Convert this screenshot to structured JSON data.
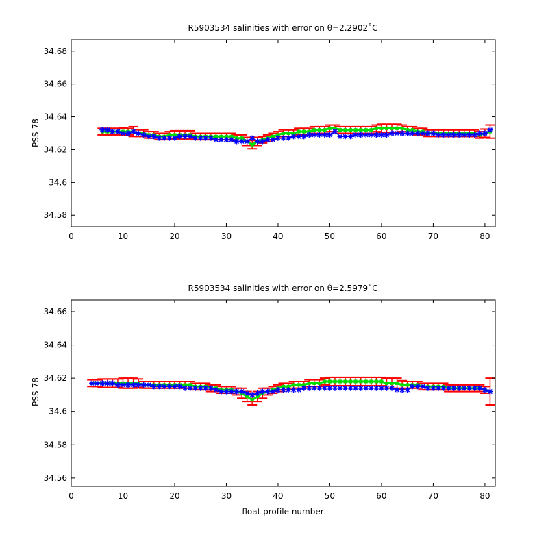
{
  "colors": {
    "errorbar": "#ff0000",
    "mapped": "#00dd00",
    "float": "#0000ff",
    "axes": "#000000"
  },
  "chart_data": [
    {
      "type": "line",
      "title": "R5903534 salinities with error on θ=2.2902˚C",
      "xlabel": "",
      "ylabel": "PSS-78",
      "xlim": [
        0,
        82
      ],
      "ylim": [
        34.573,
        34.687
      ],
      "xticks": [
        0,
        10,
        20,
        30,
        40,
        50,
        60,
        70,
        80
      ],
      "xtick_labels": [
        "0",
        "10",
        "20",
        "30",
        "40",
        "50",
        "60",
        "70",
        "80"
      ],
      "yticks": [
        34.58,
        34.6,
        34.62,
        34.64,
        34.66,
        34.68
      ],
      "ytick_labels": [
        "34.58",
        "34.6",
        "34.62",
        "34.64",
        "34.66",
        "34.68"
      ],
      "x": [
        6,
        7,
        8,
        9,
        10,
        11,
        12,
        13,
        14,
        15,
        16,
        17,
        18,
        19,
        20,
        21,
        22,
        23,
        24,
        25,
        26,
        27,
        28,
        29,
        30,
        31,
        32,
        33,
        34,
        35,
        36,
        37,
        38,
        39,
        40,
        41,
        42,
        43,
        44,
        45,
        46,
        47,
        48,
        49,
        50,
        51,
        52,
        53,
        54,
        55,
        56,
        57,
        58,
        59,
        60,
        61,
        62,
        63,
        64,
        65,
        66,
        67,
        68,
        69,
        70,
        71,
        72,
        73,
        74,
        75,
        76,
        77,
        78,
        79,
        80,
        81
      ],
      "series": [
        {
          "role": "float",
          "values": [
            34.632,
            34.632,
            34.631,
            34.631,
            34.63,
            34.63,
            34.631,
            34.63,
            34.629,
            34.628,
            34.628,
            34.627,
            34.627,
            34.627,
            34.627,
            34.628,
            34.628,
            34.628,
            34.627,
            34.627,
            34.627,
            34.627,
            34.626,
            34.626,
            34.626,
            34.626,
            34.625,
            34.625,
            34.625,
            34.627,
            34.625,
            34.625,
            34.626,
            34.626,
            34.627,
            34.627,
            34.627,
            34.628,
            34.628,
            34.628,
            34.629,
            34.629,
            34.629,
            34.629,
            34.629,
            34.631,
            34.628,
            34.628,
            34.628,
            34.629,
            34.629,
            34.629,
            34.629,
            34.629,
            34.629,
            34.629,
            34.63,
            34.63,
            34.63,
            34.63,
            34.63,
            34.63,
            34.63,
            34.63,
            34.63,
            34.629,
            34.629,
            34.629,
            34.629,
            34.629,
            34.629,
            34.629,
            34.629,
            34.63,
            34.63,
            34.632
          ]
        },
        {
          "role": "mapped",
          "values": [
            34.631,
            34.631,
            34.631,
            34.631,
            34.631,
            34.631,
            34.631,
            34.63,
            34.63,
            34.629,
            34.629,
            34.628,
            34.628,
            34.629,
            34.629,
            34.629,
            34.629,
            34.629,
            34.628,
            34.628,
            34.628,
            34.628,
            34.628,
            34.628,
            34.628,
            34.628,
            34.627,
            34.627,
            34.625,
            34.623,
            34.625,
            34.626,
            34.627,
            34.628,
            34.629,
            34.63,
            34.63,
            34.63,
            34.631,
            34.631,
            34.631,
            34.632,
            34.632,
            34.632,
            34.633,
            34.633,
            34.632,
            34.632,
            34.632,
            34.632,
            34.632,
            34.632,
            34.632,
            34.633,
            34.633,
            34.633,
            34.633,
            34.633,
            34.633,
            34.632,
            34.632,
            34.631,
            34.631,
            34.63,
            34.63,
            34.63,
            34.63,
            34.63,
            34.63,
            34.63,
            34.63,
            34.63,
            34.63,
            34.629,
            34.63,
            34.631
          ]
        },
        {
          "role": "error",
          "values": [
            0.002,
            0.002,
            0.002,
            0.002,
            0.0022,
            0.002,
            0.003,
            0.002,
            0.002,
            0.002,
            0.002,
            0.002,
            0.002,
            0.002,
            0.0025,
            0.0025,
            0.0025,
            0.0025,
            0.002,
            0.002,
            0.002,
            0.002,
            0.002,
            0.002,
            0.002,
            0.002,
            0.002,
            0.002,
            0.0025,
            0.0025,
            0.0025,
            0.002,
            0.002,
            0.002,
            0.002,
            0.002,
            0.002,
            0.002,
            0.002,
            0.002,
            0.002,
            0.002,
            0.002,
            0.002,
            0.002,
            0.002,
            0.002,
            0.002,
            0.002,
            0.002,
            0.002,
            0.002,
            0.002,
            0.002,
            0.0025,
            0.0025,
            0.0025,
            0.0025,
            0.002,
            0.002,
            0.002,
            0.002,
            0.002,
            0.002,
            0.002,
            0.002,
            0.002,
            0.002,
            0.002,
            0.002,
            0.002,
            0.002,
            0.002,
            0.002,
            0.0025,
            0.004
          ]
        }
      ]
    },
    {
      "type": "line",
      "title": "R5903534 salinities with error on θ=2.5979˚C",
      "xlabel": "float profile number",
      "ylabel": "PSS-78",
      "xlim": [
        0,
        82
      ],
      "ylim": [
        34.555,
        34.667
      ],
      "xticks": [
        0,
        10,
        20,
        30,
        40,
        50,
        60,
        70,
        80
      ],
      "xtick_labels": [
        "0",
        "10",
        "20",
        "30",
        "40",
        "50",
        "60",
        "70",
        "80"
      ],
      "yticks": [
        34.56,
        34.58,
        34.6,
        34.62,
        34.64,
        34.66
      ],
      "ytick_labels": [
        "34.56",
        "34.58",
        "34.6",
        "34.62",
        "34.64",
        "34.66"
      ],
      "x": [
        4,
        5,
        6,
        7,
        8,
        9,
        10,
        11,
        12,
        13,
        14,
        15,
        16,
        17,
        18,
        19,
        20,
        21,
        22,
        23,
        24,
        25,
        26,
        27,
        28,
        29,
        30,
        31,
        32,
        33,
        34,
        35,
        36,
        37,
        38,
        39,
        40,
        41,
        42,
        43,
        44,
        45,
        46,
        47,
        48,
        49,
        50,
        51,
        52,
        53,
        54,
        55,
        56,
        57,
        58,
        59,
        60,
        61,
        62,
        63,
        64,
        65,
        66,
        67,
        68,
        69,
        70,
        71,
        72,
        73,
        74,
        75,
        76,
        77,
        78,
        79,
        80,
        81
      ],
      "series": [
        {
          "role": "float",
          "values": [
            34.617,
            34.617,
            34.617,
            34.617,
            34.617,
            34.616,
            34.616,
            34.616,
            34.616,
            34.616,
            34.616,
            34.616,
            34.615,
            34.615,
            34.615,
            34.615,
            34.615,
            34.615,
            34.614,
            34.614,
            34.614,
            34.614,
            34.614,
            34.614,
            34.613,
            34.612,
            34.612,
            34.612,
            34.612,
            34.612,
            34.611,
            34.61,
            34.611,
            34.612,
            34.612,
            34.612,
            34.613,
            34.613,
            34.613,
            34.613,
            34.613,
            34.614,
            34.614,
            34.614,
            34.614,
            34.614,
            34.614,
            34.614,
            34.614,
            34.614,
            34.614,
            34.614,
            34.614,
            34.614,
            34.614,
            34.614,
            34.614,
            34.614,
            34.614,
            34.613,
            34.613,
            34.613,
            34.615,
            34.615,
            34.615,
            34.614,
            34.614,
            34.614,
            34.614,
            34.614,
            34.614,
            34.614,
            34.614,
            34.614,
            34.614,
            34.614,
            34.613,
            34.612
          ]
        },
        {
          "role": "mapped",
          "values": [
            34.617,
            34.617,
            34.617,
            34.617,
            34.617,
            34.617,
            34.617,
            34.617,
            34.617,
            34.617,
            34.616,
            34.616,
            34.616,
            34.616,
            34.616,
            34.616,
            34.616,
            34.616,
            34.616,
            34.616,
            34.615,
            34.615,
            34.615,
            34.614,
            34.614,
            34.613,
            34.613,
            34.613,
            34.612,
            34.611,
            34.609,
            34.607,
            34.609,
            34.611,
            34.612,
            34.613,
            34.614,
            34.615,
            34.615,
            34.616,
            34.616,
            34.616,
            34.617,
            34.617,
            34.617,
            34.618,
            34.618,
            34.618,
            34.618,
            34.618,
            34.618,
            34.618,
            34.618,
            34.618,
            34.618,
            34.618,
            34.618,
            34.617,
            34.617,
            34.617,
            34.616,
            34.616,
            34.616,
            34.616,
            34.615,
            34.615,
            34.615,
            34.615,
            34.615,
            34.614,
            34.614,
            34.614,
            34.614,
            34.614,
            34.614,
            34.614,
            34.613,
            34.612
          ]
        },
        {
          "role": "error",
          "values": [
            0.002,
            0.002,
            0.0025,
            0.0025,
            0.0025,
            0.0025,
            0.003,
            0.003,
            0.003,
            0.0025,
            0.002,
            0.002,
            0.002,
            0.002,
            0.002,
            0.002,
            0.002,
            0.002,
            0.002,
            0.002,
            0.002,
            0.002,
            0.002,
            0.002,
            0.002,
            0.002,
            0.002,
            0.002,
            0.002,
            0.003,
            0.003,
            0.003,
            0.003,
            0.003,
            0.002,
            0.002,
            0.002,
            0.002,
            0.002,
            0.002,
            0.002,
            0.002,
            0.002,
            0.002,
            0.002,
            0.002,
            0.0025,
            0.0025,
            0.0025,
            0.0025,
            0.0025,
            0.0025,
            0.0025,
            0.0025,
            0.0025,
            0.0025,
            0.0025,
            0.003,
            0.003,
            0.003,
            0.0025,
            0.002,
            0.002,
            0.002,
            0.002,
            0.002,
            0.002,
            0.002,
            0.002,
            0.002,
            0.002,
            0.002,
            0.002,
            0.002,
            0.002,
            0.002,
            0.002,
            0.008
          ]
        }
      ]
    }
  ]
}
